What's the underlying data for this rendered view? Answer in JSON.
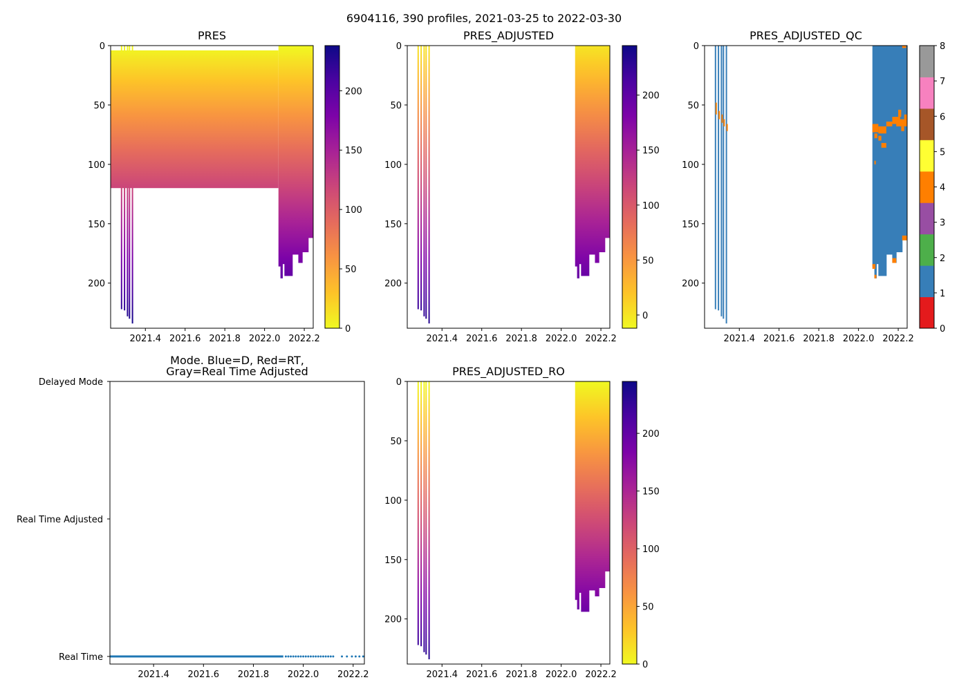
{
  "figure_title": "6904116, 390 profiles, 2021-03-25 to 2022-03-30",
  "chart_data": [
    {
      "id": "pres",
      "type": "heatmap",
      "title": "PRES",
      "xlim": [
        2021.225,
        2022.245
      ],
      "ylim": [
        238,
        0
      ],
      "xticks": [
        2021.4,
        2021.6,
        2021.8,
        2022.0,
        2022.2
      ],
      "xtick_labels": [
        "2021.4",
        "2021.6",
        "2021.8",
        "2022.0",
        "2022.2"
      ],
      "yticks": [
        0,
        50,
        100,
        150,
        200
      ],
      "ytick_labels": [
        "0",
        "50",
        "100",
        "150",
        "200"
      ],
      "colormap": "plasma_r",
      "color_range": [
        0,
        238
      ],
      "colorbar_ticks": [
        0,
        50,
        100,
        150,
        200
      ],
      "colorbar_labels": [
        "0",
        "50",
        "100",
        "150",
        "200"
      ],
      "spikes": [
        {
          "x": 2021.28,
          "top": 0,
          "bottom": 222
        },
        {
          "x": 2021.295,
          "top": 0,
          "bottom": 223
        },
        {
          "x": 2021.31,
          "top": 0,
          "bottom": 228
        },
        {
          "x": 2021.32,
          "top": 0,
          "bottom": 230
        },
        {
          "x": 2021.335,
          "top": 0,
          "bottom": 234
        }
      ],
      "shallow_band": {
        "x0": 2021.225,
        "x1": 2022.07,
        "top": 4,
        "bottom": 120
      },
      "deep_segments": [
        {
          "x0": 2022.07,
          "x1": 2022.08,
          "top": 0,
          "bottom": 186
        },
        {
          "x0": 2022.08,
          "x1": 2022.09,
          "top": 0,
          "bottom": 196
        },
        {
          "x0": 2022.09,
          "x1": 2022.1,
          "top": 0,
          "bottom": 184
        },
        {
          "x0": 2022.1,
          "x1": 2022.14,
          "top": 0,
          "bottom": 194
        },
        {
          "x0": 2022.14,
          "x1": 2022.17,
          "top": 0,
          "bottom": 176
        },
        {
          "x0": 2022.17,
          "x1": 2022.19,
          "top": 0,
          "bottom": 183
        },
        {
          "x0": 2022.19,
          "x1": 2022.22,
          "top": 0,
          "bottom": 174
        },
        {
          "x0": 2022.22,
          "x1": 2022.245,
          "top": 0,
          "bottom": 162
        }
      ]
    },
    {
      "id": "pres_adjusted",
      "type": "heatmap",
      "title": "PRES_ADJUSTED",
      "xlim": [
        2021.225,
        2022.245
      ],
      "ylim": [
        238,
        0
      ],
      "xticks": [
        2021.4,
        2021.6,
        2021.8,
        2022.0,
        2022.2
      ],
      "xtick_labels": [
        "2021.4",
        "2021.6",
        "2021.8",
        "2022.0",
        "2022.2"
      ],
      "yticks": [
        0,
        50,
        100,
        150,
        200
      ],
      "ytick_labels": [
        "0",
        "50",
        "100",
        "150",
        "200"
      ],
      "colormap": "plasma_r",
      "color_range": [
        -12,
        245
      ],
      "colorbar_ticks": [
        0,
        50,
        100,
        150,
        200
      ],
      "colorbar_labels": [
        "0",
        "50",
        "100",
        "150",
        "200"
      ],
      "spikes": [
        {
          "x": 2021.28,
          "top": 0,
          "bottom": 222
        },
        {
          "x": 2021.295,
          "top": 0,
          "bottom": 223
        },
        {
          "x": 2021.31,
          "top": 0,
          "bottom": 228
        },
        {
          "x": 2021.32,
          "top": 0,
          "bottom": 230
        },
        {
          "x": 2021.335,
          "top": 0,
          "bottom": 234
        }
      ],
      "deep_segments": [
        {
          "x0": 2022.07,
          "x1": 2022.08,
          "top": 0,
          "bottom": 186
        },
        {
          "x0": 2022.08,
          "x1": 2022.09,
          "top": 0,
          "bottom": 196
        },
        {
          "x0": 2022.09,
          "x1": 2022.1,
          "top": 0,
          "bottom": 184
        },
        {
          "x0": 2022.1,
          "x1": 2022.14,
          "top": 0,
          "bottom": 194
        },
        {
          "x0": 2022.14,
          "x1": 2022.17,
          "top": 0,
          "bottom": 176
        },
        {
          "x0": 2022.17,
          "x1": 2022.19,
          "top": 0,
          "bottom": 183
        },
        {
          "x0": 2022.19,
          "x1": 2022.22,
          "top": 0,
          "bottom": 174
        },
        {
          "x0": 2022.22,
          "x1": 2022.245,
          "top": 0,
          "bottom": 162
        }
      ]
    },
    {
      "id": "pres_adjusted_qc",
      "type": "heatmap",
      "title": "PRES_ADJUSTED_QC",
      "xlim": [
        2021.225,
        2022.245
      ],
      "ylim": [
        238,
        0
      ],
      "xticks": [
        2021.4,
        2021.6,
        2021.8,
        2022.0,
        2022.2
      ],
      "xtick_labels": [
        "2021.4",
        "2021.6",
        "2021.8",
        "2022.0",
        "2022.2"
      ],
      "yticks": [
        0,
        50,
        100,
        150,
        200
      ],
      "ytick_labels": [
        "0",
        "50",
        "100",
        "150",
        "200"
      ],
      "qc_colors": [
        "#e41a1c",
        "#377eb8",
        "#4daf4a",
        "#984ea3",
        "#ff7f00",
        "#ffff33",
        "#a65628",
        "#f781bf",
        "#999999"
      ],
      "colorbar_ticks": [
        0,
        1,
        2,
        3,
        4,
        5,
        6,
        7,
        8
      ],
      "colorbar_labels": [
        "0",
        "1",
        "2",
        "3",
        "4",
        "5",
        "6",
        "7",
        "8"
      ],
      "spikes": [
        {
          "x": 2021.28,
          "top": 0,
          "bottom": 222
        },
        {
          "x": 2021.295,
          "top": 0,
          "bottom": 223
        },
        {
          "x": 2021.31,
          "top": 0,
          "bottom": 228
        },
        {
          "x": 2021.32,
          "top": 0,
          "bottom": 230
        },
        {
          "x": 2021.335,
          "top": 0,
          "bottom": 234
        }
      ],
      "spike_qc": 1,
      "deep_segments": [
        {
          "x0": 2022.07,
          "x1": 2022.08,
          "top": 0,
          "bottom": 186
        },
        {
          "x0": 2022.08,
          "x1": 2022.09,
          "top": 0,
          "bottom": 196
        },
        {
          "x0": 2022.09,
          "x1": 2022.1,
          "top": 0,
          "bottom": 184
        },
        {
          "x0": 2022.1,
          "x1": 2022.14,
          "top": 0,
          "bottom": 194
        },
        {
          "x0": 2022.14,
          "x1": 2022.17,
          "top": 0,
          "bottom": 176
        },
        {
          "x0": 2022.17,
          "x1": 2022.19,
          "top": 0,
          "bottom": 183
        },
        {
          "x0": 2022.19,
          "x1": 2022.22,
          "top": 0,
          "bottom": 174
        },
        {
          "x0": 2022.22,
          "x1": 2022.245,
          "top": 0,
          "bottom": 162
        }
      ],
      "deep_qc": 1,
      "flag4_cells": [
        {
          "x0": 2021.28,
          "x1": 2021.285,
          "top": 48,
          "bottom": 58
        },
        {
          "x0": 2021.295,
          "x1": 2021.3,
          "top": 55,
          "bottom": 62
        },
        {
          "x0": 2021.31,
          "x1": 2021.315,
          "top": 58,
          "bottom": 65
        },
        {
          "x0": 2021.32,
          "x1": 2021.325,
          "top": 62,
          "bottom": 68
        },
        {
          "x0": 2021.335,
          "x1": 2021.34,
          "top": 66,
          "bottom": 72
        },
        {
          "x0": 2022.07,
          "x1": 2022.1,
          "top": 66,
          "bottom": 73
        },
        {
          "x0": 2022.08,
          "x1": 2022.095,
          "top": 74,
          "bottom": 78
        },
        {
          "x0": 2022.1,
          "x1": 2022.14,
          "top": 68,
          "bottom": 74
        },
        {
          "x0": 2022.1,
          "x1": 2022.115,
          "top": 76,
          "bottom": 80
        },
        {
          "x0": 2022.115,
          "x1": 2022.14,
          "top": 82,
          "bottom": 86
        },
        {
          "x0": 2022.14,
          "x1": 2022.17,
          "top": 64,
          "bottom": 68
        },
        {
          "x0": 2022.17,
          "x1": 2022.21,
          "top": 60,
          "bottom": 66
        },
        {
          "x0": 2022.19,
          "x1": 2022.245,
          "top": 62,
          "bottom": 68
        },
        {
          "x0": 2022.2,
          "x1": 2022.215,
          "top": 54,
          "bottom": 60
        },
        {
          "x0": 2022.215,
          "x1": 2022.23,
          "top": 68,
          "bottom": 72
        },
        {
          "x0": 2022.23,
          "x1": 2022.245,
          "top": 58,
          "bottom": 62
        },
        {
          "x0": 2022.22,
          "x1": 2022.24,
          "top": 0,
          "bottom": 2
        },
        {
          "x0": 2022.08,
          "x1": 2022.085,
          "top": 97,
          "bottom": 100
        },
        {
          "x0": 2022.07,
          "x1": 2022.085,
          "top": 184,
          "bottom": 188
        },
        {
          "x0": 2022.08,
          "x1": 2022.09,
          "top": 193,
          "bottom": 196
        },
        {
          "x0": 2022.17,
          "x1": 2022.19,
          "top": 179,
          "bottom": 183
        },
        {
          "x0": 2022.22,
          "x1": 2022.245,
          "top": 160,
          "bottom": 164
        }
      ]
    },
    {
      "id": "mode",
      "type": "scatter",
      "title_line1": "Mode. Blue=D, Red=RT,",
      "title_line2": "Gray=Real Time Adjusted",
      "xlim": [
        2021.225,
        2022.245
      ],
      "xticks": [
        2021.4,
        2021.6,
        2021.8,
        2022.0,
        2022.2
      ],
      "xtick_labels": [
        "2021.4",
        "2021.6",
        "2021.8",
        "2022.0",
        "2022.2"
      ],
      "categories": [
        "Real Time",
        "Real Time Adjusted",
        "Delayed Mode"
      ],
      "series_color": "#1f77b4",
      "dense_range": [
        2021.225,
        2021.92
      ],
      "points_x": [
        2021.93,
        2021.94,
        2021.95,
        2021.96,
        2021.97,
        2021.98,
        2021.99,
        2022.0,
        2022.01,
        2022.02,
        2022.03,
        2022.04,
        2022.05,
        2022.06,
        2022.07,
        2022.08,
        2022.09,
        2022.1,
        2022.11,
        2022.12,
        2022.155,
        2022.175,
        2022.195,
        2022.21,
        2022.225,
        2022.24
      ],
      "points_category": "Real Time"
    },
    {
      "id": "pres_adjusted_ro",
      "type": "heatmap",
      "title": "PRES_ADJUSTED_RO",
      "xlim": [
        2021.225,
        2022.245
      ],
      "ylim": [
        238,
        0
      ],
      "xticks": [
        2021.4,
        2021.6,
        2021.8,
        2022.0,
        2022.2
      ],
      "xtick_labels": [
        "2021.4",
        "2021.6",
        "2021.8",
        "2022.0",
        "2022.2"
      ],
      "yticks": [
        0,
        50,
        100,
        150,
        200
      ],
      "ytick_labels": [
        "0",
        "50",
        "100",
        "150",
        "200"
      ],
      "colormap": "plasma_r",
      "color_range": [
        0,
        245
      ],
      "colorbar_ticks": [
        0,
        50,
        100,
        150,
        200
      ],
      "colorbar_labels": [
        "0",
        "50",
        "100",
        "150",
        "200"
      ],
      "spikes": [
        {
          "x": 2021.28,
          "top": 0,
          "bottom": 222
        },
        {
          "x": 2021.295,
          "top": 0,
          "bottom": 223
        },
        {
          "x": 2021.31,
          "top": 0,
          "bottom": 228
        },
        {
          "x": 2021.32,
          "top": 0,
          "bottom": 230
        },
        {
          "x": 2021.335,
          "top": 0,
          "bottom": 234
        }
      ],
      "deep_segments": [
        {
          "x0": 2022.07,
          "x1": 2022.08,
          "top": 0,
          "bottom": 184
        },
        {
          "x0": 2022.08,
          "x1": 2022.09,
          "top": 0,
          "bottom": 192
        },
        {
          "x0": 2022.09,
          "x1": 2022.1,
          "top": 0,
          "bottom": 178
        },
        {
          "x0": 2022.1,
          "x1": 2022.14,
          "top": 0,
          "bottom": 194
        },
        {
          "x0": 2022.14,
          "x1": 2022.17,
          "top": 0,
          "bottom": 176
        },
        {
          "x0": 2022.17,
          "x1": 2022.19,
          "top": 0,
          "bottom": 181
        },
        {
          "x0": 2022.19,
          "x1": 2022.22,
          "top": 0,
          "bottom": 174
        },
        {
          "x0": 2022.22,
          "x1": 2022.245,
          "top": 0,
          "bottom": 160
        }
      ]
    }
  ]
}
